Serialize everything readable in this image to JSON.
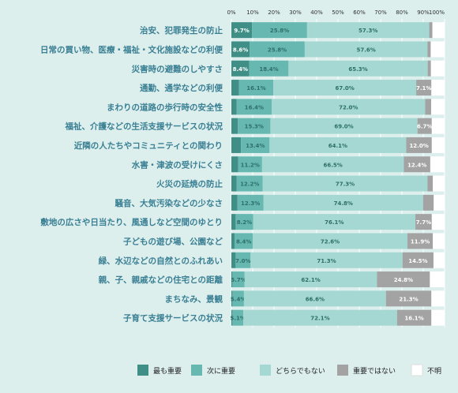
{
  "chart_data": {
    "type": "bar",
    "orientation": "horizontal",
    "stacked": true,
    "xlim": [
      0,
      100
    ],
    "x_ticks": [
      "0%",
      "10%",
      "20%",
      "30%",
      "40%",
      "50%",
      "60%",
      "70%",
      "80%",
      "90%",
      "100%"
    ],
    "grid": true,
    "legend_position": "bottom",
    "categories": [
      "治安、犯罪発生の防止",
      "日常の買い物、医療・福祉・文化施設などの利便",
      "災害時の避難のしやすさ",
      "通勤、通学などの利便",
      "まわりの道路の歩行時の安全性",
      "福祉、介護などの生活支援サービスの状況",
      "近隣の人たちやコミュニティとの関わり",
      "水害・津波の受けにくさ",
      "火災の延焼の防止",
      "騒音、大気汚染などの少なさ",
      "敷地の広さや日当たり、風通しなど空間のゆとり",
      "子どもの遊び場、公園など",
      "緑、水辺などの自然とのふれあい",
      "親、子、親戚などの住宅との距離",
      "まちなみ、景観",
      "子育て支援サービスの状況"
    ],
    "series": [
      {
        "name": "最も重要",
        "color": "#3f8f86",
        "values": [
          9.7,
          8.6,
          8.4,
          3.6,
          2.5,
          3.0,
          4.5,
          3.2,
          2.5,
          2.8,
          2.0,
          1.6,
          2.0,
          0.5,
          0.5,
          0.5
        ],
        "labels": [
          "9.7%",
          "8.6%",
          "8.4%",
          "",
          "",
          "",
          "",
          "",
          "",
          "",
          "",
          "",
          "",
          "",
          "",
          ""
        ]
      },
      {
        "name": "次に重要",
        "color": "#66b8b1",
        "values": [
          25.8,
          25.8,
          18.4,
          16.1,
          16.4,
          15.3,
          13.4,
          11.2,
          12.2,
          12.3,
          8.2,
          8.4,
          7.0,
          5.7,
          5.4,
          5.1
        ],
        "labels": [
          "25.8%",
          "25.8%",
          "18.4%",
          "16.1%",
          "16.4%",
          "15.3%",
          "13.4%",
          "11.2%",
          "12.2%",
          "12.3%",
          "8.2%",
          "8.4%",
          "7.0%",
          "5.7%",
          "5.4%",
          "5.1%"
        ]
      },
      {
        "name": "どちらでもない",
        "color": "#a5d8d2",
        "values": [
          57.3,
          57.6,
          65.3,
          67.0,
          72.0,
          69.0,
          64.1,
          66.5,
          77.3,
          74.8,
          76.1,
          72.6,
          71.3,
          62.1,
          66.6,
          72.1
        ],
        "labels": [
          "57.3%",
          "57.6%",
          "65.3%",
          "67.0%",
          "72.0%",
          "69.0%",
          "64.1%",
          "66.5%",
          "77.3%",
          "74.8%",
          "76.1%",
          "72.6%",
          "71.3%",
          "62.1%",
          "66.6%",
          "72.1%"
        ]
      },
      {
        "name": "重要ではない",
        "color": "#a3a3a3",
        "values": [
          1.5,
          1.5,
          1.5,
          7.1,
          2.8,
          6.7,
          12.0,
          12.4,
          2.5,
          5.0,
          7.7,
          11.9,
          14.5,
          24.8,
          21.3,
          16.1
        ],
        "labels": [
          "",
          "",
          "",
          "7.1%",
          "",
          "6.7%",
          "12.0%",
          "12.4%",
          "",
          "",
          "7.7%",
          "11.9%",
          "14.5%",
          "24.8%",
          "21.3%",
          "16.1%"
        ]
      },
      {
        "name": "不明",
        "color": "#ffffff",
        "values": [
          5.7,
          6.5,
          6.4,
          6.2,
          6.3,
          6.0,
          6.0,
          6.7,
          5.5,
          5.1,
          6.0,
          5.5,
          5.2,
          6.9,
          6.2,
          6.2
        ],
        "labels": [
          "",
          "",
          "",
          "",
          "",
          "",
          "",
          "",
          "",
          "",
          "",
          "",
          "",
          "",
          "",
          ""
        ]
      }
    ]
  }
}
